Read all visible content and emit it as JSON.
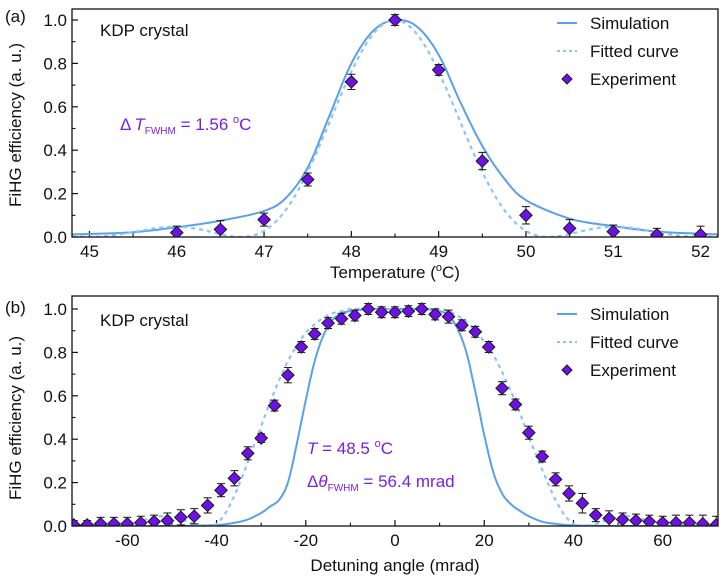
{
  "colors": {
    "simulation": "#5aa0ea",
    "fitted": "#8cc4f5",
    "marker_fill": "#7010e8",
    "marker_edge": "#1a1a1a",
    "annotation": "#7a1fe0",
    "axis": "#111111"
  },
  "chart_data": [
    {
      "type": "line",
      "panel_label": "(a)",
      "title": "",
      "inset_text": "KDP crystal",
      "xlabel": "Temperature (oC)",
      "xlabel_parts": {
        "pre": "Temperature (",
        "sup": "o",
        "post": "C)"
      },
      "ylabel": "FiHG efficiency (a. u.)",
      "xlim": [
        44.8,
        52.2
      ],
      "ylim": [
        0,
        1.05
      ],
      "xticks": [
        45,
        46,
        47,
        48,
        49,
        50,
        51,
        52
      ],
      "xtick_labels": [
        "45",
        "46",
        "47",
        "48",
        "49",
        "50",
        "51",
        "52"
      ],
      "xminor": [
        45.5,
        46.5,
        47.5,
        48.5,
        49.5,
        50.5,
        51.5
      ],
      "yticks": [
        0.0,
        0.2,
        0.4,
        0.6,
        0.8,
        1.0
      ],
      "ytick_labels": [
        "0.0",
        "0.2",
        "0.4",
        "0.6",
        "0.8",
        "1.0"
      ],
      "yminor": [
        0.1,
        0.3,
        0.5,
        0.7,
        0.9
      ],
      "grid": false,
      "legend": {
        "position": "top-right",
        "entries": [
          "Simulation",
          "Fitted curve",
          "Experiment"
        ]
      },
      "annotations": [
        {
          "delta": "Δ",
          "symbol": "T",
          "subscript": "FWHM",
          "text": " = 1.56 ",
          "sup": "o",
          "unit": "C"
        }
      ],
      "series": [
        {
          "name": "Simulation",
          "style": "solid",
          "model": {
            "kind": "sinc2",
            "center": 48.52,
            "fwhm": 1.92,
            "tail_floor": 0.0
          },
          "x": [
            44.8,
            45.0,
            45.5,
            46.0,
            46.5,
            47.0,
            47.25,
            47.5,
            47.75,
            48.0,
            48.25,
            48.5,
            48.75,
            49.0,
            49.25,
            49.5,
            49.75,
            50.0,
            50.5,
            51.0,
            51.5,
            52.0,
            52.2
          ],
          "y": [
            0.012,
            0.014,
            0.022,
            0.045,
            0.075,
            0.12,
            0.18,
            0.32,
            0.56,
            0.8,
            0.95,
            1.0,
            0.97,
            0.84,
            0.62,
            0.42,
            0.27,
            0.17,
            0.085,
            0.05,
            0.025,
            0.015,
            0.012
          ]
        },
        {
          "name": "Fitted curve",
          "style": "dashed",
          "model": {
            "kind": "sinc2",
            "center": 48.5,
            "fwhm": 1.56
          }
        },
        {
          "name": "Experiment",
          "style": "marker",
          "x": [
            46.0,
            46.5,
            47.0,
            47.5,
            48.0,
            48.5,
            49.0,
            49.5,
            50.0,
            50.5,
            51.0,
            51.5,
            52.0
          ],
          "y": [
            0.02,
            0.035,
            0.08,
            0.265,
            0.715,
            1.0,
            0.77,
            0.35,
            0.1,
            0.04,
            0.025,
            0.01,
            0.01
          ],
          "err": [
            0.03,
            0.04,
            0.03,
            0.03,
            0.035,
            0.025,
            0.025,
            0.04,
            0.04,
            0.04,
            0.03,
            0.03,
            0.04
          ]
        }
      ]
    },
    {
      "type": "line",
      "panel_label": "(b)",
      "title": "",
      "inset_text": "KDP crystal",
      "xlabel": "Detuning angle (mrad)",
      "ylabel": "FiHG efficiency (a. u.)",
      "xlim": [
        -72.4,
        72.4
      ],
      "ylim": [
        0,
        1.06
      ],
      "xticks": [
        -60,
        -40,
        -20,
        0,
        20,
        40,
        60
      ],
      "xtick_labels": [
        "-60",
        "-40",
        "-20",
        "0",
        "20",
        "40",
        "60"
      ],
      "xminor": [
        -70,
        -50,
        -30,
        -10,
        10,
        30,
        50,
        70
      ],
      "yticks": [
        0.0,
        0.2,
        0.4,
        0.6,
        0.8,
        1.0
      ],
      "ytick_labels": [
        "0.0",
        "0.2",
        "0.4",
        "0.6",
        "0.8",
        "1.0"
      ],
      "yminor": [
        0.1,
        0.3,
        0.5,
        0.7,
        0.9
      ],
      "grid": false,
      "legend": {
        "position": "top-right",
        "entries": [
          "Simulation",
          "Fitted curve",
          "Experiment"
        ]
      },
      "annotations": [
        {
          "symbol": "T",
          "text": " = 48.5 ",
          "sup": "o",
          "unit": "C"
        },
        {
          "delta": "Δ",
          "symbol": "θ",
          "subscript": "FWHM",
          "text": " = 56.4 mrad"
        }
      ],
      "series": [
        {
          "name": "Simulation",
          "style": "solid",
          "x": [
            -72.4,
            -50,
            -40,
            -36,
            -33,
            -30,
            -28,
            -26,
            -24,
            -22,
            -20,
            -18,
            -16,
            -14,
            -12,
            -10,
            -6,
            0,
            6,
            10,
            12,
            14,
            16,
            18,
            20,
            22,
            24,
            26,
            28,
            30,
            33,
            36,
            40,
            50,
            72.4
          ],
          "y": [
            0.0,
            0.0,
            0.005,
            0.015,
            0.03,
            0.06,
            0.09,
            0.12,
            0.2,
            0.38,
            0.58,
            0.76,
            0.88,
            0.95,
            0.98,
            0.99,
            1.0,
            1.0,
            1.0,
            0.99,
            0.97,
            0.91,
            0.8,
            0.62,
            0.42,
            0.25,
            0.15,
            0.1,
            0.07,
            0.045,
            0.02,
            0.01,
            0.003,
            0.0,
            0.0
          ]
        },
        {
          "name": "Fitted curve",
          "style": "dashed",
          "x": [
            -72.4,
            -60,
            -55,
            -52,
            -48,
            -45,
            -42,
            -40,
            -38,
            -36,
            -34,
            -32,
            -30,
            -28,
            -26,
            -24,
            -22,
            -20,
            -18,
            -16,
            -14,
            -12,
            -10,
            -6,
            0,
            6,
            10,
            12,
            14,
            16,
            18,
            20,
            22,
            24,
            26,
            28,
            30,
            32,
            34,
            36,
            38,
            40,
            42,
            45,
            48,
            52,
            55,
            60,
            72.4
          ],
          "y": [
            0.0,
            0.01,
            0.035,
            0.045,
            0.03,
            0.01,
            0.0,
            0.01,
            0.06,
            0.14,
            0.24,
            0.35,
            0.46,
            0.57,
            0.67,
            0.76,
            0.83,
            0.89,
            0.93,
            0.96,
            0.98,
            0.99,
            1.0,
            1.0,
            1.0,
            1.0,
            1.0,
            0.99,
            0.97,
            0.94,
            0.9,
            0.85,
            0.79,
            0.71,
            0.62,
            0.52,
            0.41,
            0.31,
            0.21,
            0.12,
            0.05,
            0.01,
            0.0,
            0.01,
            0.03,
            0.045,
            0.035,
            0.01,
            0.0
          ]
        },
        {
          "name": "Experiment",
          "style": "marker",
          "x": [
            -72,
            -69,
            -66,
            -63,
            -60,
            -57,
            -54,
            -51,
            -48,
            -45,
            -42,
            -39,
            -36,
            -33,
            -30,
            -27,
            -24,
            -21,
            -18,
            -15,
            -12,
            -9,
            -6,
            -3,
            0,
            3,
            6,
            9,
            12,
            15,
            18,
            21,
            24,
            27,
            30,
            33,
            36,
            39,
            42,
            45,
            48,
            51,
            54,
            57,
            60,
            63,
            66,
            69,
            72
          ],
          "y": [
            0.005,
            0.005,
            0.01,
            0.01,
            0.01,
            0.015,
            0.02,
            0.025,
            0.04,
            0.045,
            0.095,
            0.165,
            0.22,
            0.335,
            0.405,
            0.555,
            0.695,
            0.825,
            0.885,
            0.935,
            0.955,
            0.97,
            1.0,
            0.985,
            0.985,
            0.99,
            1.0,
            0.975,
            0.965,
            0.925,
            0.895,
            0.825,
            0.635,
            0.56,
            0.43,
            0.32,
            0.215,
            0.15,
            0.105,
            0.05,
            0.035,
            0.03,
            0.025,
            0.02,
            0.015,
            0.015,
            0.015,
            0.01,
            0.005
          ],
          "err": [
            0.02,
            0.02,
            0.03,
            0.03,
            0.03,
            0.03,
            0.03,
            0.035,
            0.035,
            0.035,
            0.035,
            0.03,
            0.035,
            0.03,
            0.02,
            0.025,
            0.035,
            0.025,
            0.025,
            0.025,
            0.025,
            0.025,
            0.025,
            0.025,
            0.025,
            0.025,
            0.025,
            0.025,
            0.03,
            0.025,
            0.025,
            0.025,
            0.03,
            0.025,
            0.03,
            0.025,
            0.03,
            0.035,
            0.045,
            0.03,
            0.035,
            0.03,
            0.03,
            0.03,
            0.03,
            0.035,
            0.035,
            0.04,
            0.04
          ]
        }
      ]
    }
  ]
}
